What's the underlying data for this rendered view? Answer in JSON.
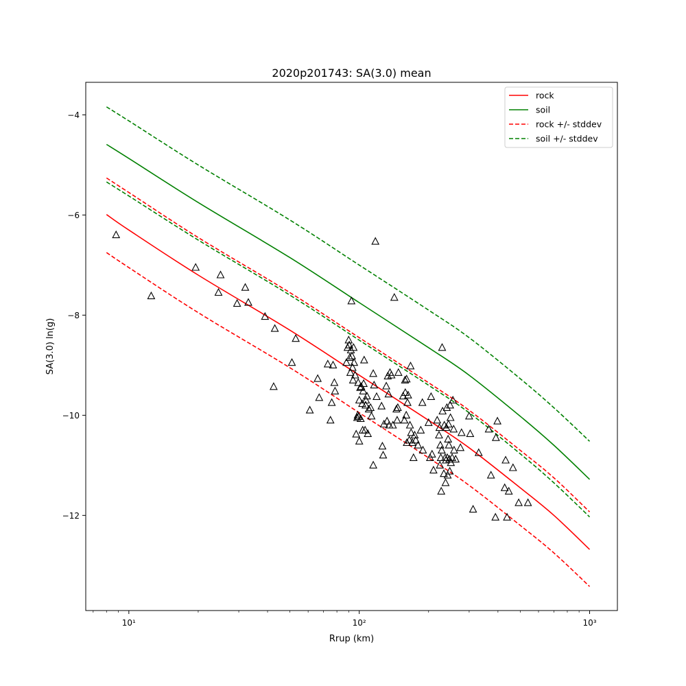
{
  "chart_data": {
    "type": "scatter",
    "title": "2020p201743: SA(3.0) mean",
    "xlabel": "Rrup (km)",
    "ylabel": "SA(3.0) ln(g)",
    "x_scale": "log",
    "xlim": [
      6.5,
      1320
    ],
    "ylim": [
      -13.9,
      -3.35
    ],
    "x_major_ticks": [
      10,
      100,
      1000
    ],
    "x_tick_labels": [
      "10¹",
      "10²",
      "10³"
    ],
    "y_ticks": [
      -4,
      -6,
      -8,
      -10,
      -12
    ],
    "y_tick_labels": [
      "−4",
      "−6",
      "−8",
      "−10",
      "−12"
    ],
    "grid": false,
    "legend_position": "upper right",
    "colors": {
      "rock": "#ff0000",
      "soil": "#008000",
      "observed": "#000000"
    },
    "legend": [
      {
        "label": "rock",
        "color": "#ff0000",
        "style": "solid"
      },
      {
        "label": "soil",
        "color": "#008000",
        "style": "solid"
      },
      {
        "label": "rock +/- stddev",
        "color": "#ff0000",
        "style": "dashed"
      },
      {
        "label": "soil +/- stddev",
        "color": "#008000",
        "style": "dashed"
      }
    ],
    "series": [
      {
        "name": "rock",
        "color": "#ff0000",
        "style": "solid",
        "x": [
          8,
          10,
          20,
          50,
          100,
          200,
          300,
          500,
          700,
          1000
        ],
        "y": [
          -5.99,
          -6.3,
          -7.2,
          -8.3,
          -9.2,
          -10.1,
          -10.65,
          -11.45,
          -12.0,
          -12.68
        ]
      },
      {
        "name": "soil",
        "color": "#008000",
        "style": "solid",
        "x": [
          8,
          10,
          20,
          50,
          100,
          200,
          300,
          500,
          700,
          1000
        ],
        "y": [
          -4.59,
          -4.87,
          -5.75,
          -6.85,
          -7.75,
          -8.65,
          -9.2,
          -10.02,
          -10.6,
          -11.28
        ]
      },
      {
        "name": "rock +/- stddev",
        "color": "#ff0000",
        "style": "dashed",
        "x": [
          8,
          10,
          20,
          50,
          100,
          200,
          300,
          500,
          700,
          1000
        ],
        "y": [
          -5.26,
          -5.55,
          -6.45,
          -7.55,
          -8.45,
          -9.35,
          -9.9,
          -10.7,
          -11.25,
          -11.93
        ]
      },
      {
        "name": "rock +/- stddev",
        "color": "#ff0000",
        "style": "dashed",
        "x": [
          8,
          10,
          20,
          50,
          100,
          200,
          300,
          500,
          700,
          1000
        ],
        "y": [
          -6.75,
          -7.05,
          -7.95,
          -9.05,
          -9.95,
          -10.85,
          -11.4,
          -12.2,
          -12.75,
          -13.42
        ]
      },
      {
        "name": "soil +/- stddev",
        "color": "#008000",
        "style": "dashed",
        "x": [
          8,
          10,
          20,
          50,
          100,
          200,
          300,
          500,
          700,
          1000
        ],
        "y": [
          -3.84,
          -4.12,
          -5.0,
          -6.1,
          -7.0,
          -7.9,
          -8.45,
          -9.27,
          -9.85,
          -10.52
        ]
      },
      {
        "name": "soil +/- stddev",
        "color": "#008000",
        "style": "dashed",
        "x": [
          8,
          10,
          20,
          50,
          100,
          200,
          300,
          500,
          700,
          1000
        ],
        "y": [
          -5.34,
          -5.62,
          -6.5,
          -7.6,
          -8.5,
          -9.4,
          -9.95,
          -10.77,
          -11.35,
          -12.03
        ]
      }
    ],
    "observed_points": [
      [
        8.8,
        -6.4
      ],
      [
        12.5,
        -7.62
      ],
      [
        19.5,
        -7.05
      ],
      [
        24.5,
        -7.55
      ],
      [
        25,
        -7.2
      ],
      [
        29.5,
        -7.77
      ],
      [
        32,
        -7.45
      ],
      [
        33,
        -7.75
      ],
      [
        39,
        -8.03
      ],
      [
        43,
        -8.27
      ],
      [
        42.5,
        -9.43
      ],
      [
        51,
        -8.95
      ],
      [
        53,
        -8.47
      ],
      [
        61,
        -9.9
      ],
      [
        66,
        -9.27
      ],
      [
        67,
        -9.65
      ],
      [
        73,
        -8.98
      ],
      [
        75,
        -10.1
      ],
      [
        76,
        -9.75
      ],
      [
        77,
        -9.0
      ],
      [
        78,
        -9.35
      ],
      [
        78.5,
        -9.52
      ],
      [
        88,
        -8.95
      ],
      [
        89,
        -8.65
      ],
      [
        90,
        -8.5
      ],
      [
        90.5,
        -8.6
      ],
      [
        91,
        -8.85
      ],
      [
        91.5,
        -9.15
      ],
      [
        92,
        -8.7
      ],
      [
        92.5,
        -7.72
      ],
      [
        93,
        -8.82
      ],
      [
        93.5,
        -9.05
      ],
      [
        94,
        -9.3
      ],
      [
        94.5,
        -8.65
      ],
      [
        95,
        -8.95
      ],
      [
        96,
        -9.2
      ],
      [
        97,
        -10.38
      ],
      [
        98,
        -10.05
      ],
      [
        98.5,
        -10.0
      ],
      [
        99,
        -9.35
      ],
      [
        99.5,
        -10.03
      ],
      [
        100,
        -10.52
      ],
      [
        100,
        -9.7
      ],
      [
        101,
        -9.45
      ],
      [
        101.5,
        -10.07
      ],
      [
        102,
        -9.43
      ],
      [
        103,
        -9.77
      ],
      [
        103.5,
        -10.3
      ],
      [
        104,
        -9.52
      ],
      [
        104.5,
        -9.37
      ],
      [
        105,
        -8.9
      ],
      [
        106,
        -10.3
      ],
      [
        106.5,
        -9.8
      ],
      [
        107,
        -9.7
      ],
      [
        108,
        -9.62
      ],
      [
        109,
        -10.37
      ],
      [
        110,
        -9.88
      ],
      [
        112,
        -9.85
      ],
      [
        113,
        -10.02
      ],
      [
        115,
        -9.17
      ],
      [
        115,
        -11.0
      ],
      [
        116,
        -9.4
      ],
      [
        117.5,
        -6.53
      ],
      [
        119,
        -9.63
      ],
      [
        125,
        -9.82
      ],
      [
        126,
        -10.62
      ],
      [
        127,
        -10.8
      ],
      [
        128,
        -10.18
      ],
      [
        131,
        -9.42
      ],
      [
        132,
        -10.12
      ],
      [
        133,
        -9.22
      ],
      [
        134,
        -9.58
      ],
      [
        135,
        -10.2
      ],
      [
        136,
        -9.15
      ],
      [
        138,
        -9.2
      ],
      [
        140,
        -10.2
      ],
      [
        142,
        -7.65
      ],
      [
        145,
        -9.88
      ],
      [
        146,
        -10.1
      ],
      [
        147,
        -9.85
      ],
      [
        148,
        -9.15
      ],
      [
        155,
        -9.62
      ],
      [
        157,
        -10.1
      ],
      [
        158,
        -9.3
      ],
      [
        158.5,
        -9.55
      ],
      [
        160,
        -10.0
      ],
      [
        160.5,
        -9.28
      ],
      [
        161,
        -10.55
      ],
      [
        162,
        -9.75
      ],
      [
        163,
        -9.6
      ],
      [
        165,
        -10.5
      ],
      [
        166,
        -10.2
      ],
      [
        167,
        -9.02
      ],
      [
        168,
        -10.35
      ],
      [
        170,
        -10.55
      ],
      [
        172,
        -10.85
      ],
      [
        174,
        -10.4
      ],
      [
        176,
        -10.5
      ],
      [
        180,
        -10.6
      ],
      [
        185,
        -10.3
      ],
      [
        188,
        -9.75
      ],
      [
        189,
        -10.7
      ],
      [
        200,
        -10.15
      ],
      [
        203,
        -10.85
      ],
      [
        205,
        -9.63
      ],
      [
        207,
        -10.78
      ],
      [
        210,
        -11.1
      ],
      [
        218,
        -10.1
      ],
      [
        222,
        -10.4
      ],
      [
        223,
        -10.25
      ],
      [
        224,
        -11.0
      ],
      [
        225,
        -10.6
      ],
      [
        226,
        -10.85
      ],
      [
        227,
        -11.52
      ],
      [
        228,
        -10.7
      ],
      [
        229,
        -8.65
      ],
      [
        230,
        -9.92
      ],
      [
        233,
        -11.17
      ],
      [
        234,
        -10.2
      ],
      [
        236,
        -10.85
      ],
      [
        237,
        -11.35
      ],
      [
        238,
        -10.9
      ],
      [
        239,
        -10.25
      ],
      [
        240,
        -9.85
      ],
      [
        241,
        -10.85
      ],
      [
        242,
        -11.2
      ],
      [
        243,
        -10.48
      ],
      [
        244,
        -10.18
      ],
      [
        245,
        -10.6
      ],
      [
        246,
        -10.88
      ],
      [
        247,
        -11.12
      ],
      [
        248,
        -9.8
      ],
      [
        249,
        -10.05
      ],
      [
        250,
        -10.95
      ],
      [
        253,
        -10.85
      ],
      [
        255,
        -9.7
      ],
      [
        257,
        -10.28
      ],
      [
        258,
        -10.7
      ],
      [
        262,
        -10.88
      ],
      [
        275,
        -10.65
      ],
      [
        278,
        -10.35
      ],
      [
        300,
        -10.02
      ],
      [
        303,
        -10.37
      ],
      [
        312,
        -11.88
      ],
      [
        330,
        -10.75
      ],
      [
        365,
        -10.28
      ],
      [
        373,
        -11.2
      ],
      [
        390,
        -12.04
      ],
      [
        392,
        -10.45
      ],
      [
        398,
        -10.12
      ],
      [
        428,
        -11.45
      ],
      [
        432,
        -10.9
      ],
      [
        438,
        -12.04
      ],
      [
        446,
        -11.52
      ],
      [
        465,
        -11.05
      ],
      [
        492,
        -11.75
      ],
      [
        540,
        -11.75
      ]
    ]
  }
}
